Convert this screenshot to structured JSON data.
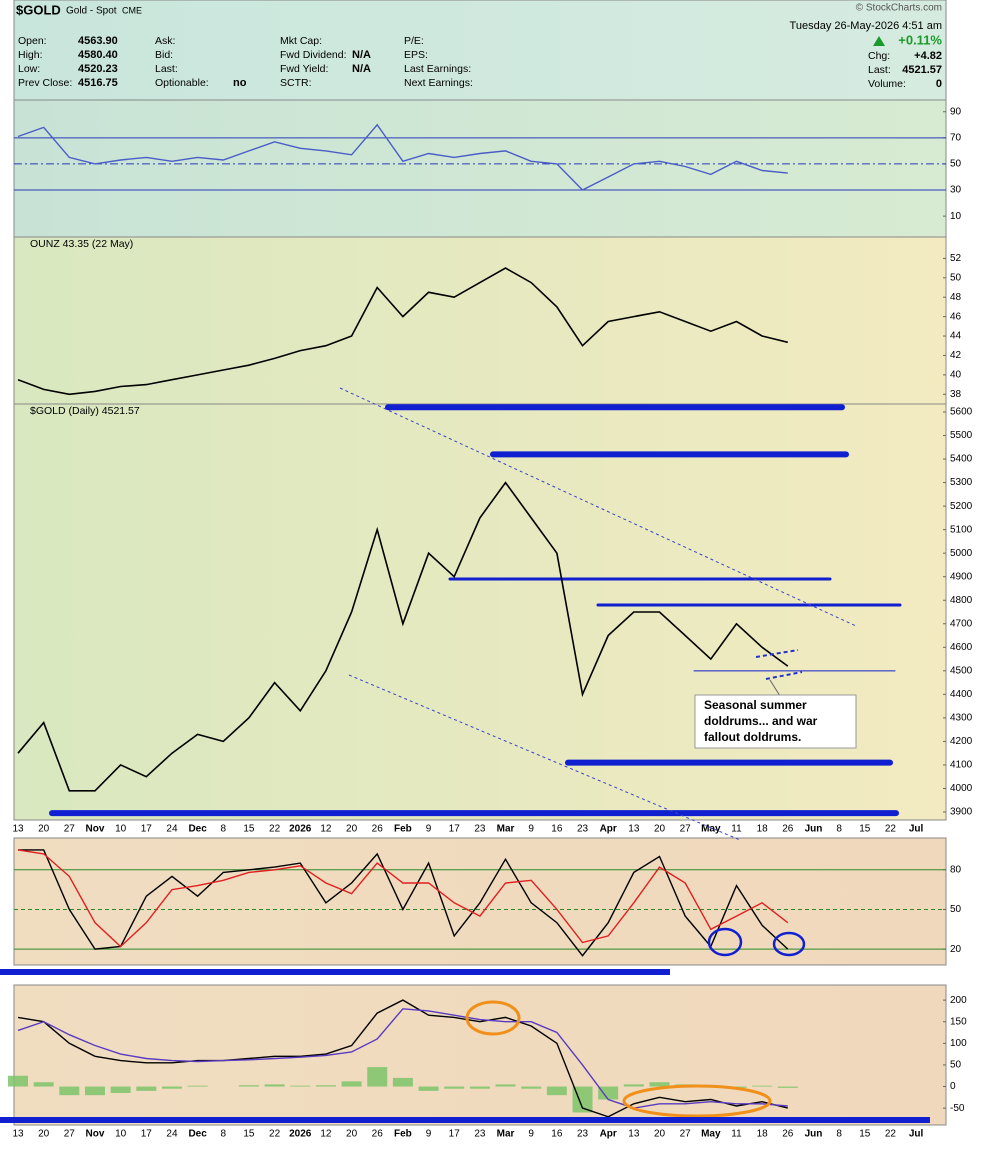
{
  "header": {
    "symbol": "$GOLD",
    "name": "Gold - Spot",
    "exchange": "CME",
    "date": "Tuesday  26-May-2026  4:51 am",
    "change_pct": "+0.11%",
    "watermark": "© StockCharts.com",
    "columns": [
      [
        {
          "label": "Open:",
          "value": "4563.90"
        },
        {
          "label": "High:",
          "value": "4580.40"
        },
        {
          "label": "Low:",
          "value": "4520.23"
        },
        {
          "label": "Prev Close:",
          "value": "4516.75"
        }
      ],
      [
        {
          "label": "Ask:"
        },
        {
          "label": "Bid:"
        },
        {
          "label": "Last:"
        },
        {
          "label": "Optionable:",
          "value": "no"
        }
      ],
      [
        {
          "label": "Mkt Cap:"
        },
        {
          "label": "Fwd Dividend:",
          "value": "N/A"
        },
        {
          "label": "Fwd Yield:",
          "value": "N/A"
        },
        {
          "label": "SCTR:"
        }
      ],
      [
        {
          "label": "P/E:"
        },
        {
          "label": "EPS:"
        },
        {
          "label": "Last Earnings:"
        },
        {
          "label": "Next Earnings:"
        }
      ],
      [
        {
          "label": "Chg:",
          "value": "+4.82"
        },
        {
          "label": "Last:",
          "value": "4521.57"
        },
        {
          "label": "Volume:",
          "value": "0"
        }
      ]
    ]
  },
  "annotation": [
    "Seasonal summer",
    "doldrums... and war",
    "fallout doldrums."
  ],
  "chart_data": [
    {
      "type": "line",
      "ylim": [
        -6,
        99
      ],
      "yticks": [
        10,
        30,
        50,
        70,
        90
      ],
      "levels": [
        70,
        50,
        30
      ],
      "series": [
        {
          "color": "#4a5cc8",
          "values": [
            71,
            78,
            55,
            50,
            53,
            55,
            52,
            55,
            53,
            60,
            67,
            62,
            60,
            57,
            80,
            52,
            58,
            55,
            58,
            60,
            52,
            50,
            30,
            40,
            50,
            52,
            48,
            42,
            52,
            45,
            43,
            null,
            null,
            null,
            null,
            null
          ]
        }
      ]
    },
    {
      "type": "line",
      "title": "OUNZ 43.35 (22 May)",
      "ylim": [
        37,
        54.2
      ],
      "yticks": [
        38,
        40,
        42,
        44,
        46,
        48,
        50,
        52
      ],
      "series": [
        {
          "color": "#000000",
          "values": [
            39.5,
            38.5,
            38,
            38.3,
            38.8,
            39,
            39.5,
            40,
            40.5,
            41,
            41.7,
            42.5,
            43,
            44,
            49,
            46,
            48.5,
            48,
            49.5,
            51,
            49.5,
            47,
            43,
            45.5,
            46,
            46.5,
            45.5,
            44.5,
            45.5,
            44,
            43.35,
            null,
            null,
            null,
            null,
            null
          ]
        }
      ]
    },
    {
      "type": "line",
      "title": "$GOLD (Daily) 4521.57",
      "ylim": [
        3866,
        5634
      ],
      "yticks": [
        3900,
        4000,
        4100,
        4200,
        4300,
        4400,
        4500,
        4600,
        4700,
        4800,
        4900,
        5000,
        5100,
        5200,
        5300,
        5400,
        5500,
        5600
      ],
      "levels": [
        5620,
        5420,
        4890,
        4780,
        4500,
        4110,
        3895
      ],
      "categories": [
        "13",
        "20",
        "27",
        "Nov",
        "10",
        "17",
        "24",
        "Dec",
        "8",
        "15",
        "22",
        "2026",
        "12",
        "20",
        "26",
        "Feb",
        "9",
        "17",
        "23",
        "Mar",
        "9",
        "16",
        "23",
        "Apr",
        "13",
        "20",
        "27",
        "May",
        "11",
        "18",
        "26",
        "Jun",
        "8",
        "15",
        "22",
        "Jul"
      ],
      "series": [
        {
          "color": "#000000",
          "values": [
            4150,
            4280,
            3990,
            3990,
            4100,
            4050,
            4150,
            4230,
            4200,
            4300,
            4450,
            4330,
            4500,
            4750,
            5100,
            4700,
            5000,
            4900,
            5150,
            5300,
            5150,
            5000,
            4400,
            4650,
            4750,
            4750,
            4650,
            4550,
            4700,
            4600,
            4520,
            null,
            null,
            null,
            null,
            null
          ]
        }
      ]
    },
    {
      "type": "line",
      "ylim": [
        8,
        104
      ],
      "yticks": [
        20,
        50,
        80
      ],
      "levels": [
        80,
        50,
        20
      ],
      "series": [
        {
          "color": "#000000",
          "values": [
            95,
            95,
            50,
            20,
            22,
            60,
            75,
            60,
            78,
            80,
            82,
            85,
            55,
            70,
            92,
            50,
            85,
            30,
            55,
            88,
            55,
            40,
            15,
            40,
            78,
            90,
            45,
            22,
            68,
            38,
            20,
            null,
            null,
            null,
            null,
            null
          ]
        },
        {
          "color": "#e02020",
          "values": [
            95,
            92,
            75,
            40,
            22,
            40,
            65,
            68,
            72,
            78,
            80,
            83,
            70,
            62,
            85,
            70,
            70,
            55,
            45,
            70,
            72,
            50,
            25,
            30,
            55,
            82,
            70,
            35,
            45,
            55,
            40,
            null,
            null,
            null,
            null,
            null
          ]
        }
      ]
    },
    {
      "type": "line",
      "ylim": [
        -89,
        235
      ],
      "yticks": [
        -50,
        0,
        50,
        100,
        150,
        200
      ],
      "categories": [
        "13",
        "20",
        "27",
        "Nov",
        "10",
        "17",
        "24",
        "Dec",
        "8",
        "15",
        "22",
        "2026",
        "12",
        "20",
        "26",
        "Feb",
        "9",
        "17",
        "23",
        "Mar",
        "9",
        "16",
        "23",
        "Apr",
        "13",
        "20",
        "27",
        "May",
        "11",
        "18",
        "26",
        "Jun",
        "8",
        "15",
        "22",
        "Jul"
      ],
      "series": [
        {
          "type": "bar",
          "color": "#7cc46a",
          "values": [
            25,
            10,
            -20,
            -20,
            -15,
            -10,
            -5,
            2,
            0,
            3,
            5,
            2,
            3,
            12,
            45,
            20,
            -10,
            -5,
            -5,
            5,
            -5,
            -20,
            -60,
            -30,
            5,
            10,
            5,
            2,
            -3,
            2,
            -3,
            null,
            null,
            null,
            null,
            null
          ]
        },
        {
          "color": "#000000",
          "values": [
            160,
            150,
            100,
            70,
            60,
            55,
            55,
            60,
            60,
            65,
            70,
            70,
            75,
            95,
            170,
            200,
            165,
            160,
            150,
            160,
            140,
            100,
            -50,
            -70,
            -40,
            -25,
            -35,
            -30,
            -45,
            -35,
            -50,
            null,
            null,
            null,
            null,
            null
          ]
        },
        {
          "color": "#5a3ac0",
          "values": [
            130,
            150,
            120,
            95,
            75,
            65,
            60,
            58,
            60,
            62,
            65,
            68,
            72,
            80,
            110,
            180,
            175,
            165,
            155,
            150,
            150,
            125,
            50,
            -30,
            -50,
            -40,
            -40,
            -35,
            -40,
            -40,
            -45,
            null,
            null,
            null,
            null,
            null
          ]
        }
      ]
    }
  ]
}
